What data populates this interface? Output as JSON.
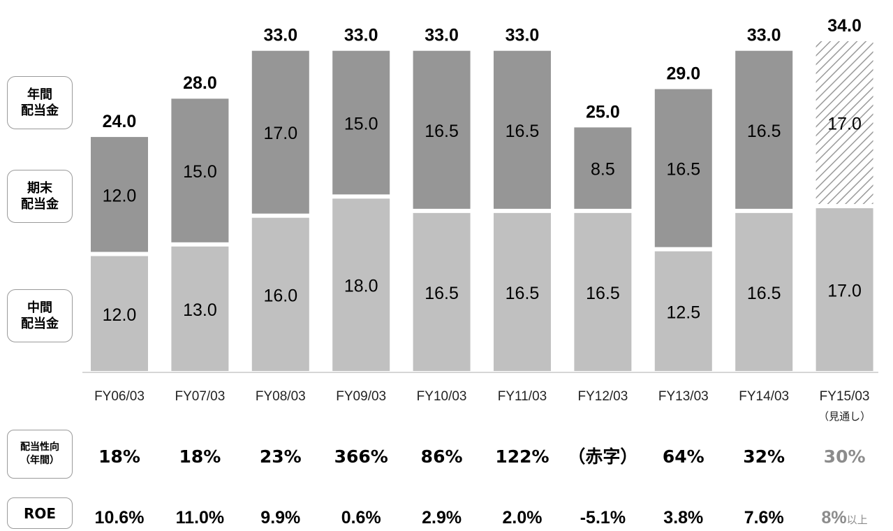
{
  "legend": {
    "annual": [
      "年間",
      "配当金"
    ],
    "year_end": [
      "期末",
      "配当金"
    ],
    "interim": [
      "中間",
      "配当金"
    ]
  },
  "row_labels": {
    "payout": [
      "配当性向",
      "（年間）"
    ],
    "roe": "ROE"
  },
  "colors": {
    "interim": "#c0c0c0",
    "year_end": "#969696",
    "forecast_hatch": "#9a9a9a",
    "text": "#000000",
    "forecast_text": "#8c8c8c"
  },
  "chart_data": {
    "type": "bar",
    "stacked": true,
    "categories": [
      "FY06/03",
      "FY07/03",
      "FY08/03",
      "FY09/03",
      "FY10/03",
      "FY11/03",
      "FY12/03",
      "FY13/03",
      "FY14/03",
      "FY15/03"
    ],
    "category_notes": [
      "",
      "",
      "",
      "",
      "",
      "",
      "",
      "",
      "",
      "（見通し）"
    ],
    "series": [
      {
        "name": "中間配当金",
        "values": [
          12.0,
          13.0,
          16.0,
          18.0,
          16.5,
          16.5,
          16.5,
          12.5,
          16.5,
          17.0
        ],
        "labels": [
          "12.0",
          "13.0",
          "16.0",
          "18.0",
          "16.5",
          "16.5",
          "16.5",
          "12.5",
          "16.5",
          "17.0"
        ]
      },
      {
        "name": "期末配当金",
        "values": [
          12.0,
          15.0,
          17.0,
          15.0,
          16.5,
          16.5,
          8.5,
          16.5,
          16.5,
          17.0
        ],
        "labels": [
          "12.0",
          "15.0",
          "17.0",
          "15.0",
          "16.5",
          "16.5",
          "8.5",
          "16.5",
          "16.5",
          "17.0"
        ]
      }
    ],
    "totals": [
      "24.0",
      "28.0",
      "33.0",
      "33.0",
      "33.0",
      "33.0",
      "25.0",
      "29.0",
      "33.0",
      "34.0"
    ],
    "forecast_flags": [
      false,
      false,
      false,
      false,
      false,
      false,
      false,
      false,
      false,
      true
    ],
    "ylim": [
      0,
      34
    ],
    "grid": false,
    "payout_ratio": [
      "18%",
      "18%",
      "23%",
      "366%",
      "86%",
      "122%",
      "（赤字）",
      "64%",
      "32%",
      "30%"
    ],
    "roe": [
      "10.6%",
      "11.0%",
      "9.9%",
      "0.6%",
      "2.9%",
      "2.0%",
      "-5.1%",
      "3.8%",
      "7.6%",
      "8%"
    ],
    "roe_suffix": [
      "",
      "",
      "",
      "",
      "",
      "",
      "",
      "",
      "",
      "以上"
    ]
  }
}
